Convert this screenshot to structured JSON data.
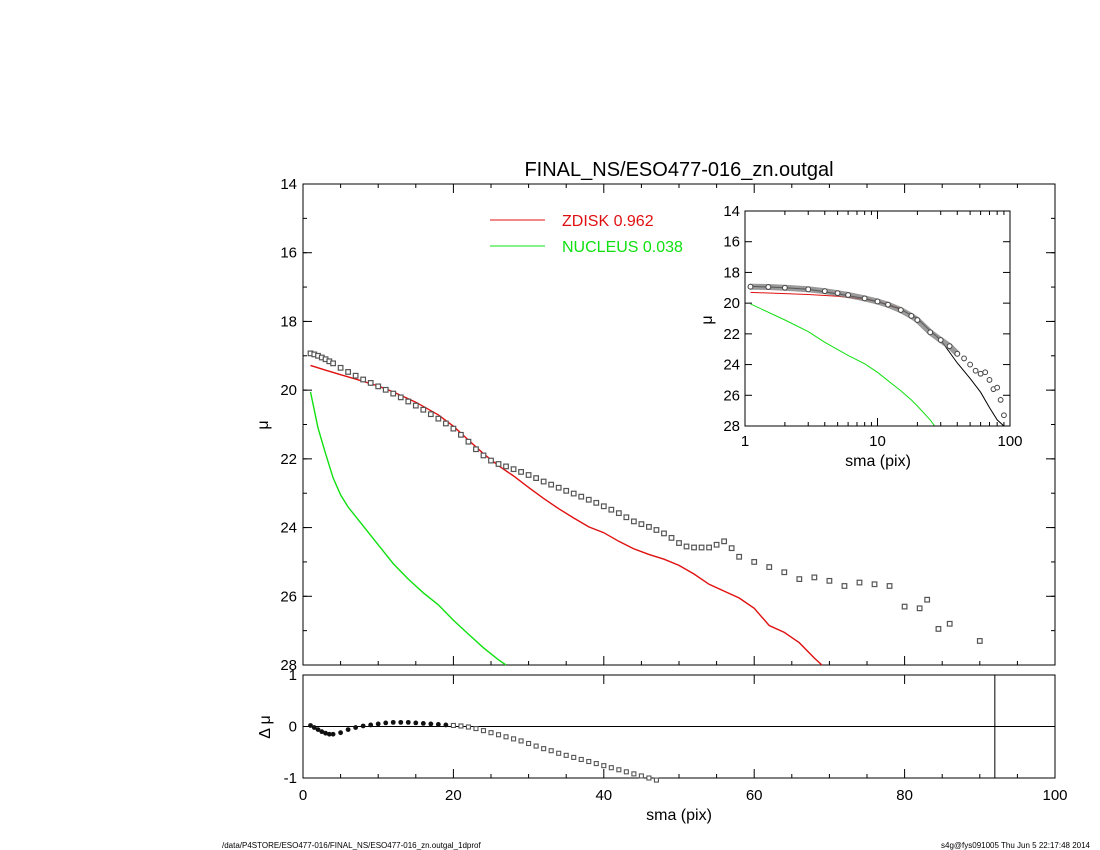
{
  "chart_data": [
    {
      "type": "scatter",
      "panel": "main profile",
      "title": "FINAL_NS/ESO477-016_zn.outgal",
      "xlabel": "",
      "ylabel": "μ",
      "xlim": [
        0,
        100
      ],
      "ylim": [
        28,
        14
      ],
      "y_inverted": true,
      "xticks": [
        0,
        20,
        40,
        60,
        80,
        100
      ],
      "yticks": [
        14,
        16,
        18,
        20,
        22,
        24,
        26,
        28
      ],
      "legend": {
        "placement": "top-center",
        "entries": [
          {
            "name": "ZDISK",
            "value": "0.962",
            "color": "#e01010"
          },
          {
            "name": "NUCLEUS",
            "value": "0.038",
            "color": "#10e010"
          }
        ]
      },
      "series": [
        {
          "name": "",
          "kind": "data-markers",
          "color": "#555555",
          "x": [
            1,
            1.5,
            2,
            2.5,
            3,
            3.5,
            4,
            5,
            6,
            7,
            8,
            9,
            10,
            11,
            12,
            13,
            14,
            15,
            16,
            17,
            18,
            19,
            20,
            21,
            22,
            23,
            24,
            25,
            26,
            27,
            28,
            29,
            30,
            31,
            32,
            33,
            34,
            35,
            36,
            37,
            38,
            39,
            40,
            41,
            42,
            43,
            44,
            45,
            46,
            47,
            48,
            49,
            50,
            51,
            52,
            53,
            54,
            55,
            56,
            57,
            58,
            60,
            62,
            64,
            66,
            68,
            70,
            72,
            74,
            76,
            78,
            80,
            82,
            83,
            84.5,
            86,
            90
          ],
          "y": [
            18.93,
            18.96,
            19.0,
            19.05,
            19.1,
            19.16,
            19.22,
            19.35,
            19.47,
            19.58,
            19.69,
            19.79,
            19.89,
            19.99,
            20.1,
            20.21,
            20.33,
            20.45,
            20.57,
            20.7,
            20.83,
            20.97,
            21.12,
            21.3,
            21.5,
            21.72,
            21.9,
            22.05,
            22.15,
            22.22,
            22.3,
            22.38,
            22.47,
            22.56,
            22.66,
            22.75,
            22.84,
            22.93,
            23.01,
            23.1,
            23.19,
            23.28,
            23.38,
            23.48,
            23.58,
            23.7,
            23.82,
            23.9,
            23.98,
            24.07,
            24.17,
            24.3,
            24.45,
            24.55,
            24.58,
            24.58,
            24.58,
            24.5,
            24.4,
            24.6,
            24.85,
            25.0,
            25.15,
            25.3,
            25.5,
            25.45,
            25.55,
            25.7,
            25.6,
            25.65,
            25.7,
            26.3,
            26.35,
            26.1,
            26.95,
            26.8,
            27.3
          ]
        },
        {
          "name": "ZDISK",
          "kind": "line",
          "color": "#e01010",
          "x": [
            1,
            3,
            5,
            7,
            10,
            12,
            15,
            18,
            20,
            22,
            24,
            26,
            28,
            30,
            32,
            34,
            36,
            38,
            40,
            42,
            44,
            46,
            48,
            50,
            52,
            54,
            56,
            58,
            60,
            62,
            64,
            66,
            68,
            69
          ],
          "y": [
            19.28,
            19.42,
            19.55,
            19.68,
            19.88,
            20.05,
            20.35,
            20.72,
            21.05,
            21.45,
            21.85,
            22.2,
            22.5,
            22.83,
            23.15,
            23.45,
            23.72,
            23.98,
            24.15,
            24.4,
            24.62,
            24.78,
            24.92,
            25.1,
            25.35,
            25.65,
            25.85,
            26.05,
            26.35,
            26.85,
            27.05,
            27.35,
            27.8,
            28.0
          ]
        },
        {
          "name": "NUCLEUS",
          "kind": "line",
          "color": "#10e010",
          "x": [
            1,
            2,
            3,
            4,
            5,
            6,
            8,
            10,
            12,
            14,
            16,
            18,
            20,
            22,
            24,
            26,
            27
          ],
          "y": [
            20.05,
            21.1,
            21.85,
            22.55,
            23.05,
            23.4,
            23.95,
            24.5,
            25.05,
            25.5,
            25.9,
            26.25,
            26.7,
            27.1,
            27.5,
            27.85,
            28.0
          ]
        }
      ]
    },
    {
      "type": "scatter",
      "panel": "residual",
      "xlabel": "sma (pix)",
      "ylabel": "Δ μ",
      "xlim": [
        0,
        100
      ],
      "ylim": [
        -1,
        1
      ],
      "xticks": [
        0,
        20,
        40,
        60,
        80,
        100
      ],
      "yticks": [
        -1,
        0,
        1
      ],
      "zero_line": true,
      "vertical_marker_x": 92,
      "series": [
        {
          "name": "",
          "kind": "residual-markers",
          "color": "#333333",
          "x": [
            1,
            1.5,
            2,
            2.5,
            3,
            3.5,
            4,
            5,
            6,
            7,
            8,
            9,
            10,
            11,
            12,
            13,
            14,
            15,
            16,
            17,
            18,
            19,
            20,
            21,
            22,
            23,
            24,
            25,
            26,
            27,
            28,
            29,
            30,
            31,
            32,
            33,
            34,
            35,
            36,
            37,
            38,
            39,
            40,
            41,
            42,
            43,
            44,
            45,
            46,
            47,
            48,
            49
          ],
          "y": [
            0.02,
            -0.02,
            -0.06,
            -0.1,
            -0.13,
            -0.15,
            -0.15,
            -0.12,
            -0.06,
            -0.02,
            0.01,
            0.03,
            0.05,
            0.07,
            0.08,
            0.08,
            0.08,
            0.07,
            0.06,
            0.05,
            0.04,
            0.03,
            0.02,
            0.01,
            -0.01,
            -0.04,
            -0.08,
            -0.12,
            -0.16,
            -0.2,
            -0.24,
            -0.28,
            -0.33,
            -0.38,
            -0.43,
            -0.47,
            -0.52,
            -0.56,
            -0.6,
            -0.64,
            -0.68,
            -0.72,
            -0.76,
            -0.8,
            -0.84,
            -0.88,
            -0.92,
            -0.96,
            -1.0,
            -1.04,
            -1.08,
            -1.12
          ]
        }
      ]
    },
    {
      "type": "line",
      "panel": "inset log profile",
      "xlabel": "sma (pix)",
      "ylabel": "μ",
      "x_scale": "log",
      "xlim": [
        1,
        100
      ],
      "ylim": [
        28,
        14
      ],
      "y_inverted": true,
      "xticks": [
        1,
        10,
        100
      ],
      "yticks": [
        14,
        16,
        18,
        20,
        22,
        24,
        26,
        28
      ],
      "series": [
        {
          "name": "",
          "kind": "data-markers",
          "color": "#555555",
          "x": [
            1.1,
            1.5,
            2,
            3,
            4,
            5,
            6,
            8,
            10,
            12,
            15,
            18,
            20,
            25,
            30,
            35,
            40,
            45,
            50,
            55,
            60,
            65,
            70,
            75,
            80,
            85,
            90
          ],
          "y": [
            18.93,
            18.95,
            19.0,
            19.1,
            19.22,
            19.35,
            19.47,
            19.69,
            19.89,
            20.1,
            20.45,
            20.83,
            21.1,
            21.9,
            22.4,
            22.8,
            23.3,
            23.6,
            24.0,
            24.4,
            24.6,
            24.5,
            25.0,
            25.6,
            25.5,
            26.3,
            27.3
          ]
        },
        {
          "name": "ZDISK",
          "kind": "line",
          "color": "#e01010",
          "x": [
            1.1,
            2,
            3,
            5,
            8,
            10,
            15
          ],
          "y": [
            19.3,
            19.38,
            19.44,
            19.55,
            19.75,
            19.9,
            20.35
          ]
        },
        {
          "name": "",
          "kind": "total-model",
          "color": "#000000",
          "x": [
            1.1,
            2,
            3,
            5,
            8,
            10,
            15,
            20,
            25,
            30,
            40,
            50,
            60,
            70,
            80,
            90
          ],
          "y": [
            18.9,
            19.0,
            19.1,
            19.4,
            19.7,
            19.9,
            20.4,
            21.0,
            21.8,
            22.4,
            23.9,
            24.9,
            25.8,
            26.8,
            27.6,
            28.0
          ]
        },
        {
          "name": "NUCLEUS",
          "kind": "line",
          "color": "#10e010",
          "x": [
            1.1,
            2,
            3,
            4,
            6,
            8,
            10,
            12,
            15,
            18,
            20,
            25,
            27
          ],
          "y": [
            20.05,
            21.1,
            21.85,
            22.55,
            23.4,
            23.95,
            24.5,
            25.05,
            25.7,
            26.3,
            26.7,
            27.6,
            28.0
          ]
        }
      ]
    }
  ],
  "footer": {
    "left": "/data/P4STORE/ESO477-016/FINAL_NS/ESO477-016_zn.outgal_1dprof",
    "right": "s4g@fys091005  Thu Jun  5 22:17:48 2014"
  }
}
